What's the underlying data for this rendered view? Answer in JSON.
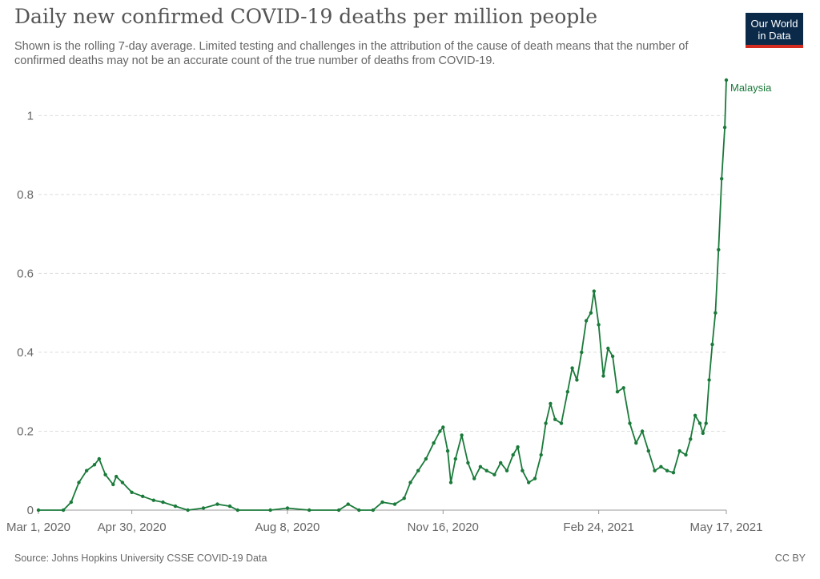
{
  "header": {
    "title": "Daily new confirmed COVID-19 deaths per million people",
    "subtitle": "Shown is the rolling 7-day average. Limited testing and challenges in the attribution of the cause of death means that the number of confirmed deaths may not be an accurate count of the true number of deaths from COVID-19.",
    "logo_line1": "Our World",
    "logo_line2": "in Data"
  },
  "footer": {
    "source": "Source: Johns Hopkins University CSSE COVID-19 Data",
    "license": "CC BY"
  },
  "colors": {
    "series": "#1a7a3a",
    "grid": "#dddddd",
    "logo_bg": "#0b2a4a",
    "logo_bar": "#d42b21"
  },
  "chart_data": {
    "type": "line",
    "title": "Daily new confirmed COVID-19 deaths per million people",
    "xlabel": "",
    "ylabel": "",
    "x_range": [
      "2020-03-01",
      "2021-05-17"
    ],
    "ylim": [
      0,
      1.09
    ],
    "y_ticks": [
      {
        "value": 0,
        "label": "0"
      },
      {
        "value": 0.2,
        "label": "0.2"
      },
      {
        "value": 0.4,
        "label": "0.4"
      },
      {
        "value": 0.6,
        "label": "0.6"
      },
      {
        "value": 0.8,
        "label": "0.8"
      },
      {
        "value": 1,
        "label": "1"
      }
    ],
    "x_ticks": [
      {
        "date": "2020-03-01",
        "label": "Mar 1, 2020"
      },
      {
        "date": "2020-04-30",
        "label": "Apr 30, 2020"
      },
      {
        "date": "2020-08-08",
        "label": "Aug 8, 2020"
      },
      {
        "date": "2020-11-16",
        "label": "Nov 16, 2020"
      },
      {
        "date": "2021-02-24",
        "label": "Feb 24, 2021"
      },
      {
        "date": "2021-05-17",
        "label": "May 17, 2021"
      }
    ],
    "grid": true,
    "series": [
      {
        "name": "Malaysia",
        "points": [
          [
            "2020-03-01",
            0
          ],
          [
            "2020-03-17",
            0
          ],
          [
            "2020-03-22",
            0.02
          ],
          [
            "2020-03-27",
            0.07
          ],
          [
            "2020-04-01",
            0.1
          ],
          [
            "2020-04-06",
            0.115
          ],
          [
            "2020-04-09",
            0.13
          ],
          [
            "2020-04-13",
            0.09
          ],
          [
            "2020-04-18",
            0.065
          ],
          [
            "2020-04-20",
            0.085
          ],
          [
            "2020-04-24",
            0.07
          ],
          [
            "2020-04-30",
            0.045
          ],
          [
            "2020-05-07",
            0.035
          ],
          [
            "2020-05-14",
            0.025
          ],
          [
            "2020-05-20",
            0.02
          ],
          [
            "2020-05-28",
            0.01
          ],
          [
            "2020-06-05",
            0
          ],
          [
            "2020-06-15",
            0.005
          ],
          [
            "2020-06-24",
            0.015
          ],
          [
            "2020-07-02",
            0.01
          ],
          [
            "2020-07-07",
            0
          ],
          [
            "2020-07-28",
            0
          ],
          [
            "2020-08-08",
            0.005
          ],
          [
            "2020-08-22",
            0
          ],
          [
            "2020-09-10",
            0
          ],
          [
            "2020-09-16",
            0.015
          ],
          [
            "2020-09-23",
            0
          ],
          [
            "2020-10-02",
            0
          ],
          [
            "2020-10-08",
            0.02
          ],
          [
            "2020-10-16",
            0.015
          ],
          [
            "2020-10-22",
            0.03
          ],
          [
            "2020-10-26",
            0.07
          ],
          [
            "2020-10-31",
            0.1
          ],
          [
            "2020-11-05",
            0.13
          ],
          [
            "2020-11-10",
            0.17
          ],
          [
            "2020-11-14",
            0.2
          ],
          [
            "2020-11-16",
            0.21
          ],
          [
            "2020-11-19",
            0.15
          ],
          [
            "2020-11-21",
            0.07
          ],
          [
            "2020-11-24",
            0.13
          ],
          [
            "2020-11-28",
            0.19
          ],
          [
            "2020-12-02",
            0.12
          ],
          [
            "2020-12-06",
            0.08
          ],
          [
            "2020-12-10",
            0.11
          ],
          [
            "2020-12-14",
            0.1
          ],
          [
            "2020-12-19",
            0.09
          ],
          [
            "2020-12-23",
            0.12
          ],
          [
            "2020-12-27",
            0.1
          ],
          [
            "2020-12-31",
            0.14
          ],
          [
            "2021-01-03",
            0.16
          ],
          [
            "2021-01-06",
            0.1
          ],
          [
            "2021-01-10",
            0.07
          ],
          [
            "2021-01-14",
            0.08
          ],
          [
            "2021-01-18",
            0.14
          ],
          [
            "2021-01-21",
            0.22
          ],
          [
            "2021-01-24",
            0.27
          ],
          [
            "2021-01-27",
            0.23
          ],
          [
            "2021-01-31",
            0.22
          ],
          [
            "2021-02-04",
            0.3
          ],
          [
            "2021-02-07",
            0.36
          ],
          [
            "2021-02-10",
            0.33
          ],
          [
            "2021-02-13",
            0.4
          ],
          [
            "2021-02-16",
            0.48
          ],
          [
            "2021-02-19",
            0.5
          ],
          [
            "2021-02-21",
            0.555
          ],
          [
            "2021-02-24",
            0.47
          ],
          [
            "2021-02-27",
            0.34
          ],
          [
            "2021-03-02",
            0.41
          ],
          [
            "2021-03-05",
            0.39
          ],
          [
            "2021-03-08",
            0.3
          ],
          [
            "2021-03-12",
            0.31
          ],
          [
            "2021-03-16",
            0.22
          ],
          [
            "2021-03-20",
            0.17
          ],
          [
            "2021-03-24",
            0.2
          ],
          [
            "2021-03-28",
            0.15
          ],
          [
            "2021-04-01",
            0.1
          ],
          [
            "2021-04-05",
            0.11
          ],
          [
            "2021-04-09",
            0.1
          ],
          [
            "2021-04-13",
            0.095
          ],
          [
            "2021-04-17",
            0.15
          ],
          [
            "2021-04-21",
            0.14
          ],
          [
            "2021-04-24",
            0.18
          ],
          [
            "2021-04-27",
            0.24
          ],
          [
            "2021-04-30",
            0.22
          ],
          [
            "2021-05-02",
            0.195
          ],
          [
            "2021-05-04",
            0.22
          ],
          [
            "2021-05-06",
            0.33
          ],
          [
            "2021-05-08",
            0.42
          ],
          [
            "2021-05-10",
            0.5
          ],
          [
            "2021-05-12",
            0.66
          ],
          [
            "2021-05-14",
            0.84
          ],
          [
            "2021-05-16",
            0.97
          ],
          [
            "2021-05-17",
            1.09
          ]
        ]
      }
    ]
  }
}
